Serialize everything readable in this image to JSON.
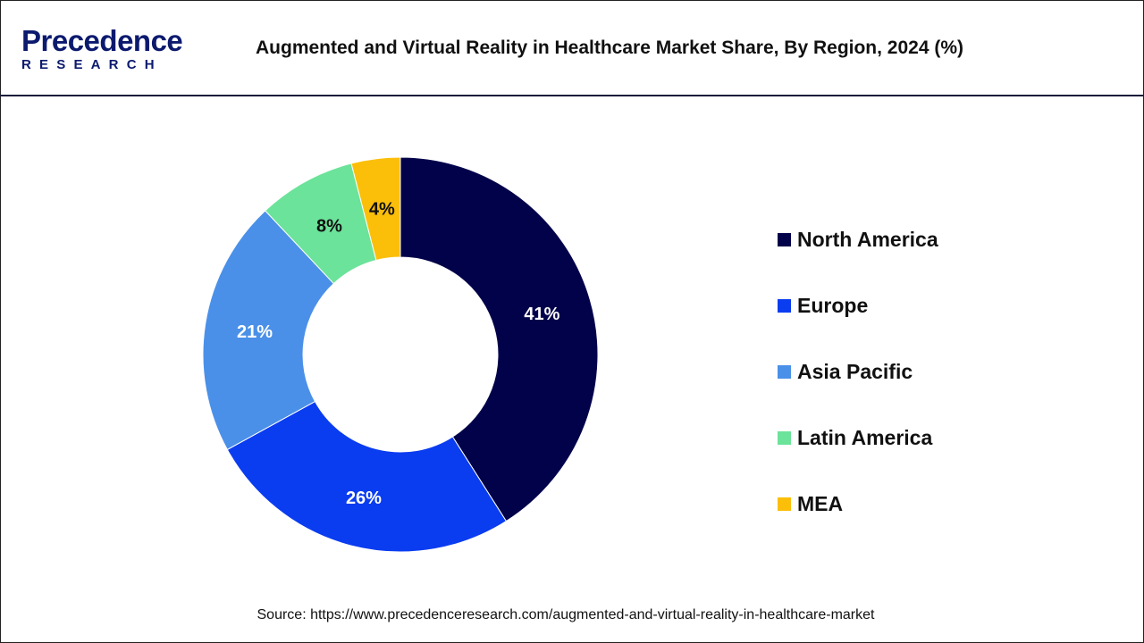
{
  "header": {
    "logo_main": "Precedence",
    "logo_sub": "RESEARCH",
    "title": "Augmented and Virtual Reality in Healthcare Market Share, By Region, 2024 (%)"
  },
  "chart_data": {
    "type": "pie",
    "donut": true,
    "title": "Augmented and Virtual Reality in Healthcare Market Share, By Region, 2024 (%)",
    "categories": [
      "North America",
      "Europe",
      "Asia Pacific",
      "Latin America",
      "MEA"
    ],
    "values": [
      41,
      26,
      21,
      8,
      4
    ],
    "labels": [
      "41%",
      "26%",
      "21%",
      "8%",
      "4%"
    ],
    "colors": [
      "#02024a",
      "#0a3cf0",
      "#4a90e8",
      "#6be39a",
      "#fbbf0a"
    ],
    "label_colors": [
      "#ffffff",
      "#ffffff",
      "#ffffff",
      "#111111",
      "#111111"
    ],
    "legend_position": "right"
  },
  "source": "Source: https://www.precedenceresearch.com/augmented-and-virtual-reality-in-healthcare-market"
}
